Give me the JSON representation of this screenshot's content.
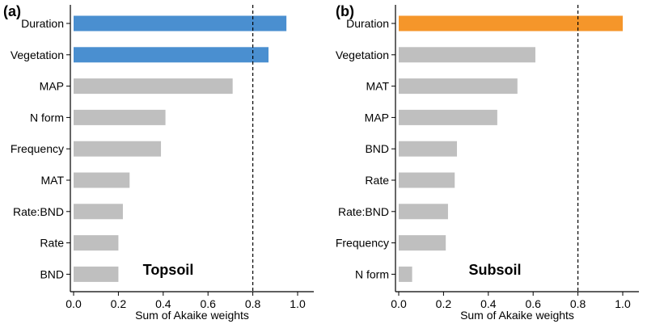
{
  "chart_data": [
    {
      "type": "bar",
      "orientation": "horizontal",
      "panel_label": "(a)",
      "annotation": "Topsoil",
      "xlabel": "Sum of Akaike weights",
      "ylabel": "",
      "xlim": [
        0,
        1.05
      ],
      "xticks": [
        "0.0",
        "0.2",
        "0.4",
        "0.6",
        "0.8",
        "1.0"
      ],
      "threshold": 0.8,
      "categories": [
        "Duration",
        "Vegetation",
        "MAP",
        "N form",
        "Frequency",
        "MAT",
        "Rate:BND",
        "Rate",
        "BND"
      ],
      "values": [
        0.95,
        0.87,
        0.71,
        0.41,
        0.39,
        0.25,
        0.22,
        0.2,
        0.2
      ],
      "highlighted": [
        true,
        true,
        false,
        false,
        false,
        false,
        false,
        false,
        false
      ],
      "highlight_color": "#4a8fd0",
      "bar_color": "#bfbfbf",
      "grid": false
    },
    {
      "type": "bar",
      "orientation": "horizontal",
      "panel_label": "(b)",
      "annotation": "Subsoil",
      "xlabel": "Sum of Akaike weights",
      "ylabel": "",
      "xlim": [
        0,
        1.05
      ],
      "xticks": [
        "0.0",
        "0.2",
        "0.4",
        "0.6",
        "0.8",
        "1.0"
      ],
      "threshold": 0.8,
      "categories": [
        "Duration",
        "Vegetation",
        "MAT",
        "MAP",
        "BND",
        "Rate",
        "Rate:BND",
        "Frequency",
        "N form"
      ],
      "values": [
        1.0,
        0.61,
        0.53,
        0.44,
        0.26,
        0.25,
        0.22,
        0.21,
        0.06
      ],
      "highlighted": [
        true,
        false,
        false,
        false,
        false,
        false,
        false,
        false,
        false
      ],
      "highlight_color": "#f5962a",
      "bar_color": "#bfbfbf",
      "grid": false
    }
  ]
}
